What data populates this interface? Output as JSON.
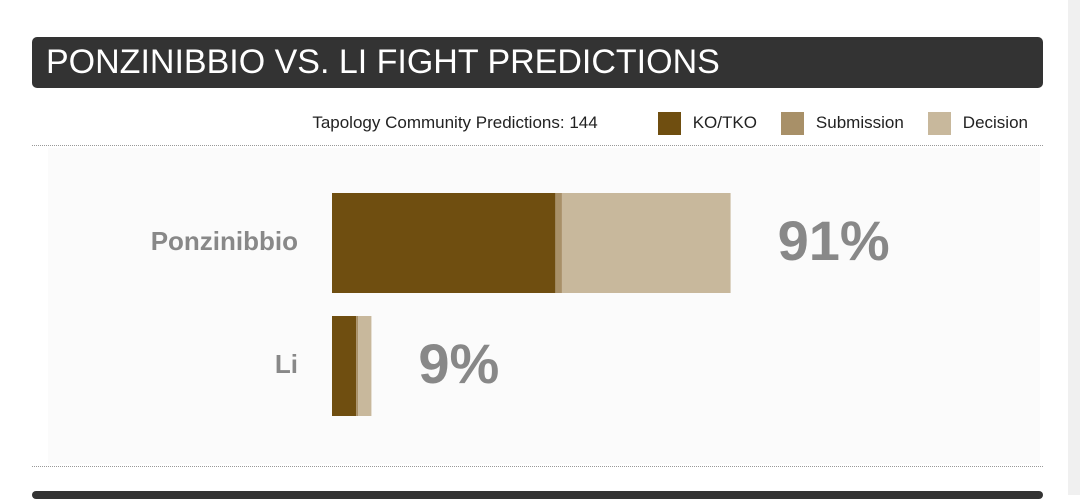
{
  "chart_data": {
    "type": "stacked-bar",
    "title": "PONZINIBBIO VS. LI FIGHT PREDICTIONS",
    "subtitle": "Tapology Community Predictions: 144",
    "categories": [
      "Ponzinibbio",
      "Li"
    ],
    "series": [
      {
        "name": "KO/TKO",
        "color": "#6f4e10",
        "values": [
          51,
          5.5
        ]
      },
      {
        "name": "Submission",
        "color": "#a89068",
        "values": [
          1.5,
          0.5
        ]
      },
      {
        "name": "Decision",
        "color": "#c8b89c",
        "values": [
          38.5,
          3
        ]
      }
    ],
    "values": [
      91,
      9
    ],
    "value_labels": [
      "91%",
      "9%"
    ],
    "xlim": [
      0,
      100
    ]
  }
}
